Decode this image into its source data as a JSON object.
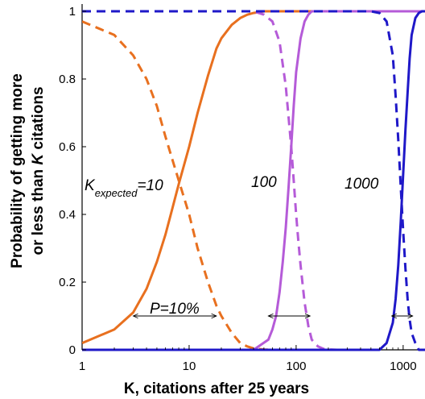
{
  "chart_data": {
    "type": "line",
    "title": "",
    "xlabel": "K, citations after 25 years",
    "ylabel_line1": "Probability  of getting more",
    "ylabel_line2_prefix": "or less than ",
    "ylabel_line2_italic": "K",
    "ylabel_line2_suffix": " citations",
    "x_scale": "log",
    "xlim": [
      1,
      1600
    ],
    "ylim": [
      0,
      1
    ],
    "x_ticks": [
      1,
      10,
      100,
      1000
    ],
    "x_tick_labels": [
      "1",
      "10",
      "100",
      "1000"
    ],
    "y_ticks": [
      0,
      0.2,
      0.4,
      0.6,
      0.8,
      1
    ],
    "y_tick_labels": [
      "0",
      "0.2",
      "0.4",
      "0.6",
      "0.8",
      "1"
    ],
    "grid": false,
    "legend": "none",
    "series": [
      {
        "color": "#E8701F",
        "dash": false,
        "x": [
          1,
          2,
          3,
          4,
          5,
          6,
          7,
          8,
          10,
          12,
          15,
          18,
          20,
          25,
          30,
          35,
          40,
          50,
          60,
          80,
          100,
          1600
        ],
        "y": [
          0.02,
          0.06,
          0.11,
          0.18,
          0.26,
          0.34,
          0.42,
          0.49,
          0.6,
          0.7,
          0.81,
          0.89,
          0.92,
          0.96,
          0.98,
          0.99,
          0.995,
          1,
          1,
          1,
          1,
          1
        ]
      },
      {
        "color": "#E8701F",
        "dash": true,
        "x": [
          1,
          2,
          3,
          4,
          5,
          6,
          7,
          8,
          10,
          12,
          15,
          18,
          20,
          25,
          30,
          35,
          40,
          50,
          60
        ],
        "y": [
          0.97,
          0.93,
          0.87,
          0.8,
          0.72,
          0.63,
          0.56,
          0.5,
          0.4,
          0.3,
          0.2,
          0.13,
          0.1,
          0.05,
          0.02,
          0.01,
          0.004,
          0.001,
          0
        ]
      },
      {
        "color": "#B55BD8",
        "dash": false,
        "x": [
          1,
          40,
          55,
          60,
          65,
          70,
          75,
          80,
          85,
          90,
          95,
          100,
          110,
          120,
          130,
          140,
          160,
          200,
          1600
        ],
        "y": [
          0,
          0,
          0.03,
          0.06,
          0.1,
          0.17,
          0.26,
          0.36,
          0.48,
          0.6,
          0.72,
          0.82,
          0.92,
          0.97,
          0.99,
          1,
          1,
          1,
          1
        ]
      },
      {
        "color": "#B55BD8",
        "dash": true,
        "x": [
          1,
          30,
          40,
          50,
          60,
          70,
          80,
          90,
          95,
          100,
          105,
          110,
          120,
          130,
          140,
          160,
          180,
          200,
          240
        ],
        "y": [
          1,
          1,
          1,
          0.99,
          0.97,
          0.91,
          0.78,
          0.6,
          0.5,
          0.4,
          0.32,
          0.25,
          0.14,
          0.07,
          0.03,
          0.01,
          0.003,
          0.001,
          0
        ]
      },
      {
        "color": "#1F18C8",
        "dash": false,
        "x": [
          1,
          600,
          700,
          800,
          850,
          900,
          950,
          1000,
          1050,
          1100,
          1150,
          1200,
          1300,
          1400,
          1500,
          1600
        ],
        "y": [
          0,
          0,
          0.02,
          0.08,
          0.15,
          0.25,
          0.38,
          0.52,
          0.65,
          0.76,
          0.86,
          0.93,
          0.98,
          0.995,
          1,
          1
        ]
      },
      {
        "color": "#1F18C8",
        "dash": true,
        "x": [
          1,
          400,
          500,
          600,
          700,
          800,
          850,
          900,
          950,
          1000,
          1050,
          1100,
          1150,
          1200,
          1300,
          1400,
          1600
        ],
        "y": [
          1,
          1,
          1,
          0.995,
          0.97,
          0.87,
          0.75,
          0.62,
          0.48,
          0.35,
          0.24,
          0.15,
          0.09,
          0.05,
          0.02,
          0,
          0
        ]
      }
    ],
    "annotations": {
      "label_k_main": "K",
      "label_k_sub": "expected",
      "label_k_value": "=10",
      "label_100": "100",
      "label_1000": "1000",
      "label_p": "P=10%"
    },
    "interval_arrows": [
      {
        "x1": 3,
        "x2": 18,
        "y": 0.1
      },
      {
        "x1": 55,
        "x2": 135,
        "y": 0.1
      },
      {
        "x1": 780,
        "x2": 1230,
        "y": 0.1
      }
    ]
  }
}
